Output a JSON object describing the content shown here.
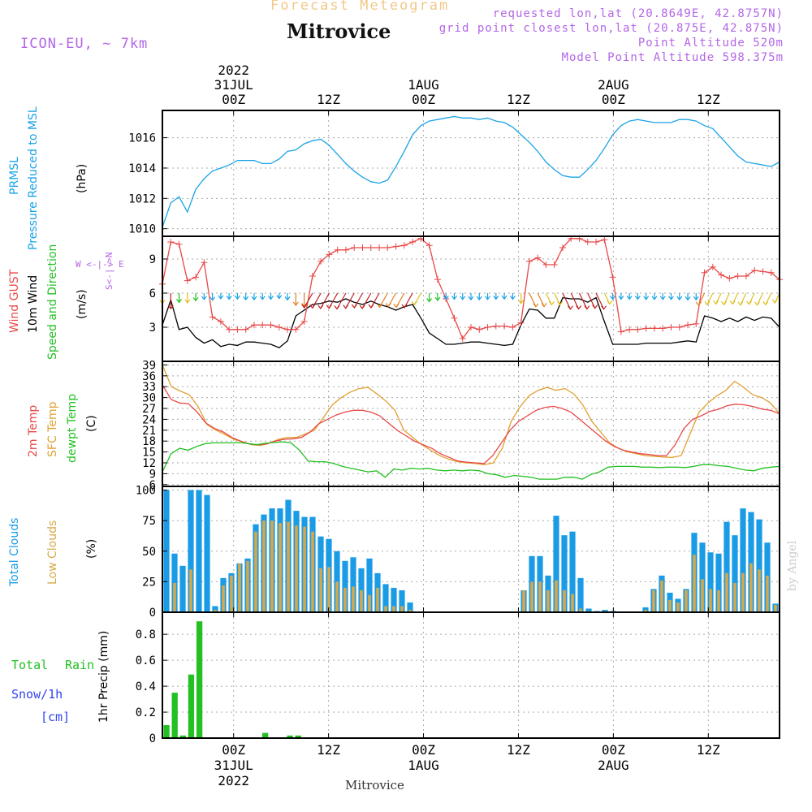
{
  "header": {
    "super_title": "Forecast Meteogram",
    "location": "Mitrovice",
    "model": "ICON-EU, ~ 7km",
    "requested": "requested lon,lat (20.8649E, 42.8757N)",
    "grid_point": "grid point closest lon,lat (20.875E, 42.875N)",
    "point_altitude": "Point Altitude 520m",
    "model_altitude": "Model Point Altitude 598.375m"
  },
  "footer": {
    "location": "Mitrovice",
    "credit": "by Angel"
  },
  "time_axis": {
    "ticks": [
      {
        "label": "00Z",
        "date": "31JUL",
        "year": "2022"
      },
      {
        "label": "12Z",
        "date": "",
        "year": ""
      },
      {
        "label": "00Z",
        "date": "1AUG",
        "year": ""
      },
      {
        "label": "12Z",
        "date": "",
        "year": ""
      },
      {
        "label": "00Z",
        "date": "2AUG",
        "year": ""
      },
      {
        "label": "12Z",
        "date": "",
        "year": ""
      }
    ]
  },
  "panel_labels": {
    "prmsl": "PRMSL",
    "prmsl_desc": "Pressure Reduced to MSL",
    "prmsl_unit": "(hPa)",
    "gust": "Wind GUST",
    "wind10": "10m Wind",
    "wind_dir": "Speed and Direction",
    "wind_unit": "(m/s)",
    "compass_we": "W <-|-> E",
    "compass_sn": "S<-|->N",
    "t2m": "2m Temp",
    "sfc": "SFC Temp",
    "dewpt": "dewpt Temp",
    "temp_unit": "(C)",
    "total_clouds": "Total Clouds",
    "low_clouds": "Low Clouds",
    "cloud_unit": "(%)",
    "total_rain_a": "Total",
    "total_rain_b": "Rain",
    "snow": "Snow/1h",
    "snow_unit": "[cm]",
    "precip": "1hr Precip (mm)"
  },
  "colors": {
    "pressure": "#1aa3e6",
    "gust": "#e84848",
    "wind": "#000000",
    "t2m": "#e84848",
    "sfc": "#e0a030",
    "dewpt": "#22c022",
    "total_clouds": "#1a9be6",
    "low_clouds": "#d8a848",
    "rain": "#22c022",
    "snow": "#3344ee",
    "title_orange": "#f2c88a"
  },
  "chart_data": [
    {
      "type": "line",
      "name": "PRMSL",
      "x_unit": "hours since 2022-07-30 15Z",
      "y_ticks": [
        1010,
        1012,
        1014,
        1016
      ],
      "ylim": [
        1009.5,
        1017.8
      ],
      "values": [
        1010.1,
        1011.7,
        1012.1,
        1011.1,
        1012.6,
        1013.3,
        1013.8,
        1014.0,
        1014.2,
        1014.5,
        1014.5,
        1014.5,
        1014.3,
        1014.3,
        1014.6,
        1015.1,
        1015.2,
        1015.6,
        1015.8,
        1015.9,
        1015.5,
        1014.9,
        1014.3,
        1013.8,
        1013.4,
        1013.1,
        1013.0,
        1013.2,
        1014.1,
        1015.1,
        1016.2,
        1016.8,
        1017.1,
        1017.2,
        1017.3,
        1017.4,
        1017.3,
        1017.3,
        1017.2,
        1017.3,
        1017.1,
        1017.0,
        1016.7,
        1016.2,
        1015.7,
        1015.1,
        1014.4,
        1013.9,
        1013.5,
        1013.4,
        1013.4,
        1013.9,
        1014.5,
        1015.3,
        1016.2,
        1016.8,
        1017.1,
        1017.2,
        1017.1,
        1017.0,
        1017.0,
        1017.0,
        1017.2,
        1017.2,
        1017.1,
        1016.8,
        1016.6,
        1016.0,
        1015.4,
        1014.8,
        1014.4,
        1014.3,
        1014.2,
        1014.1,
        1014.4
      ]
    },
    {
      "type": "line",
      "name": "Wind",
      "y_ticks": [
        3,
        6,
        9
      ],
      "ylim": [
        0,
        11
      ],
      "gust": [
        6.8,
        10.5,
        10.3,
        7.1,
        7.4,
        8.7,
        3.9,
        3.5,
        2.8,
        2.8,
        2.8,
        3.2,
        3.2,
        3.2,
        3.0,
        2.8,
        2.8,
        3.5,
        7.5,
        8.8,
        9.4,
        9.8,
        9.8,
        10.0,
        10.0,
        10.0,
        10.0,
        10.0,
        10.1,
        10.2,
        10.5,
        10.8,
        10.2,
        7.2,
        5.5,
        3.8,
        2.0,
        3.0,
        2.8,
        3.0,
        3.1,
        3.1,
        3.0,
        3.4,
        8.8,
        9.1,
        8.5,
        8.5,
        10.0,
        10.8,
        10.8,
        10.5,
        10.5,
        10.7,
        7.4,
        2.6,
        2.8,
        2.8,
        2.9,
        2.9,
        2.9,
        3.0,
        3.0,
        3.2,
        3.3,
        7.8,
        8.3,
        7.6,
        7.3,
        7.5,
        7.5,
        8.0,
        7.9,
        7.8,
        7.2
      ],
      "wind10": [
        3.2,
        5.4,
        2.8,
        3.0,
        2.1,
        1.6,
        1.9,
        1.3,
        1.5,
        1.4,
        1.7,
        1.7,
        1.6,
        1.5,
        1.2,
        1.8,
        4.0,
        4.5,
        5.0,
        5.1,
        5.3,
        5.2,
        5.5,
        5.2,
        5.0,
        5.3,
        5.0,
        4.8,
        4.5,
        4.8,
        5.0,
        3.8,
        2.5,
        2.0,
        1.5,
        1.5,
        1.6,
        1.7,
        1.7,
        1.6,
        1.5,
        1.4,
        1.5,
        3.2,
        4.6,
        4.5,
        3.8,
        3.8,
        5.6,
        5.5,
        5.5,
        5.2,
        5.6,
        3.5,
        1.5,
        1.5,
        1.5,
        1.5,
        1.6,
        1.6,
        1.6,
        1.6,
        1.7,
        1.8,
        1.7,
        4.0,
        3.8,
        3.5,
        3.8,
        3.5,
        3.9,
        3.6,
        3.9,
        3.8,
        3.0
      ]
    },
    {
      "type": "line",
      "name": "Temperature",
      "y_ticks": [
        6,
        9,
        12,
        15,
        18,
        21,
        24,
        27,
        30,
        33,
        36,
        39
      ],
      "ylim": [
        5.5,
        40
      ],
      "t2m": [
        33.5,
        29.5,
        28.5,
        28.3,
        26.0,
        23.0,
        21.5,
        20.5,
        19.0,
        18.0,
        17.2,
        17.0,
        17.2,
        18.0,
        18.5,
        18.6,
        19.0,
        20.5,
        22.8,
        24.0,
        25.2,
        26.0,
        26.5,
        26.5,
        26.0,
        25.0,
        23.0,
        21.0,
        19.5,
        18.0,
        17.0,
        16.0,
        14.5,
        13.5,
        12.5,
        12.2,
        12.0,
        11.8,
        14.0,
        17.5,
        21.0,
        23.5,
        25.0,
        26.5,
        27.3,
        27.6,
        27.0,
        26.0,
        24.0,
        22.0,
        20.0,
        18.0,
        16.5,
        15.5,
        15.0,
        14.5,
        14.3,
        14.0,
        14.0,
        17.0,
        21.5,
        24.0,
        25.0,
        26.2,
        26.8,
        27.8,
        28.2,
        28.0,
        27.5,
        26.8,
        26.5,
        25.5
      ],
      "sfc": [
        39.0,
        33.0,
        31.8,
        30.8,
        27.5,
        22.5,
        21.0,
        19.8,
        18.5,
        17.8,
        17.0,
        16.8,
        17.5,
        18.5,
        19.0,
        19.0,
        20.0,
        21.0,
        24.5,
        28.0,
        30.0,
        31.5,
        32.5,
        32.8,
        31.0,
        29.0,
        26.5,
        21.0,
        19.0,
        17.0,
        15.5,
        14.0,
        13.0,
        12.3,
        12.0,
        11.8,
        11.5,
        12.0,
        16.0,
        23.5,
        27.5,
        30.5,
        32.0,
        32.8,
        32.0,
        32.5,
        31.0,
        28.0,
        23.5,
        20.5,
        17.5,
        16.0,
        15.0,
        14.5,
        14.0,
        13.8,
        13.6,
        13.5,
        14.0,
        20.0,
        26.0,
        28.5,
        30.5,
        32.0,
        34.5,
        32.8,
        30.8,
        30.0,
        28.5,
        25.5
      ],
      "dewpt": [
        9.5,
        14.5,
        16.0,
        15.5,
        16.5,
        17.3,
        17.5,
        17.5,
        17.5,
        17.6,
        17.3,
        17.0,
        17.4,
        17.6,
        17.8,
        17.5,
        15.5,
        12.5,
        12.3,
        12.3,
        11.8,
        11.0,
        10.5,
        10.0,
        9.5,
        9.8,
        8.0,
        10.3,
        10.0,
        10.5,
        10.3,
        10.5,
        10.0,
        9.8,
        10.0,
        9.8,
        10.0,
        9.8,
        9.0,
        8.7,
        8.0,
        8.5,
        8.3,
        8.0,
        7.5,
        7.5,
        7.5,
        8.0,
        8.0,
        7.5,
        8.8,
        9.5,
        10.8,
        11.0,
        11.0,
        11.0,
        10.8,
        10.8,
        10.7,
        10.8,
        10.8,
        10.7,
        11.0,
        11.5,
        11.5,
        11.2,
        11.0,
        10.5,
        10.0,
        9.8,
        10.5,
        10.8,
        11.0
      ]
    },
    {
      "type": "bar",
      "name": "Clouds",
      "y_ticks": [
        0,
        25,
        50,
        75,
        100
      ],
      "ylim": [
        0,
        103
      ],
      "total": [
        100,
        48,
        38,
        100,
        100,
        96,
        5,
        28,
        32,
        40,
        44,
        72,
        80,
        85,
        85,
        92,
        83,
        78,
        78,
        62,
        60,
        50,
        42,
        45,
        36,
        44,
        32,
        23,
        20,
        18,
        8,
        0,
        0,
        0,
        0,
        0,
        0,
        0,
        0,
        0,
        0,
        0,
        0,
        0,
        18,
        46,
        46,
        30,
        79,
        63,
        66,
        28,
        3,
        1,
        2,
        1,
        0,
        0,
        0,
        4,
        19,
        30,
        16,
        11,
        19,
        65,
        57,
        49,
        48,
        74,
        63,
        85,
        82,
        76,
        57,
        7
      ],
      "low": [
        0,
        24,
        0,
        35,
        0,
        0,
        2,
        22,
        30,
        40,
        42,
        66,
        75,
        75,
        73,
        74,
        71,
        70,
        66,
        36,
        37,
        25,
        20,
        21,
        18,
        14,
        20,
        5,
        5,
        5,
        2,
        0,
        0,
        0,
        0,
        0,
        0,
        0,
        0,
        0,
        0,
        0,
        0,
        0,
        18,
        25,
        25,
        18,
        26,
        18,
        15,
        3,
        1,
        0,
        1,
        0,
        0,
        0,
        0,
        2,
        18,
        26,
        10,
        8,
        18,
        47,
        27,
        19,
        18,
        32,
        24,
        32,
        40,
        35,
        30,
        6
      ]
    },
    {
      "type": "bar",
      "name": "1hr Precip",
      "y_ticks": [
        0,
        0.2,
        0.4,
        0.6,
        0.8
      ],
      "ylim": [
        0,
        0.97
      ],
      "rain": [
        0.1,
        0.35,
        0.02,
        0.49,
        0.9,
        0,
        0,
        0,
        0,
        0,
        0,
        0,
        0.04,
        0,
        0,
        0.02,
        0.02
      ]
    }
  ]
}
